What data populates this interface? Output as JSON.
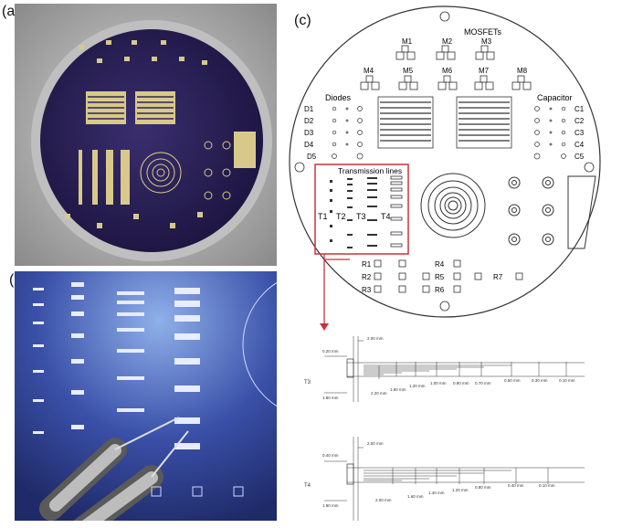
{
  "panels": {
    "a": "(a)",
    "b": "(b)",
    "c": "(c)"
  },
  "mask": {
    "mosfets_title": "MOSFETs",
    "mosfets": [
      "M1",
      "M2",
      "M3",
      "M4",
      "M5",
      "M6",
      "M7",
      "M8"
    ],
    "diodes_title": "Diodes",
    "diodes": [
      "D1",
      "D2",
      "D3",
      "D4",
      "D5"
    ],
    "capacitor_title": "Capacitor",
    "capacitors": [
      "C1",
      "C2",
      "C3",
      "C4",
      "C5"
    ],
    "tlines_title": "Transmission lines",
    "tlines": [
      "T1",
      "T2",
      "T3",
      "T4"
    ],
    "resistors": [
      "R1",
      "R2",
      "R3",
      "R4",
      "R5",
      "R6",
      "R7"
    ]
  },
  "t3": {
    "name": "T3",
    "width": "0.20 mm",
    "top_dim": "2.00 mm",
    "left_dim": "1.80 mm",
    "gaps": [
      "2.20 mm",
      "1.60 mm",
      "1.20 mm",
      "1.00 mm",
      "0.80 mm",
      "0.70 mm",
      "0.50 mm",
      "0.30 mm",
      "0.10 mm"
    ]
  },
  "t4": {
    "name": "T4",
    "width": "0.40 mm",
    "top_dim": "2.00 mm",
    "left_dim": "1.80 mm",
    "gaps": [
      "2.00 mm",
      "1.60 mm",
      "1.40 mm",
      "1.20 mm",
      "0.80 mm",
      "0.40 mm",
      "0.10 mm"
    ]
  }
}
